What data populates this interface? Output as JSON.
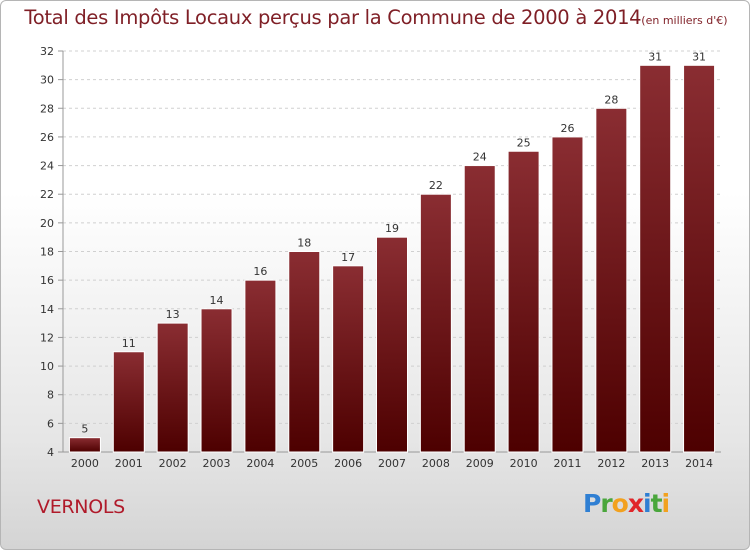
{
  "title": {
    "main": "Total des Impôts Locaux perçus par la Commune de 2000 à 2014",
    "unit": "(en milliers d'€)"
  },
  "commune": "VERNOLS",
  "logo": {
    "letters": [
      {
        "char": "P",
        "color": "#2f7fd3"
      },
      {
        "char": "r",
        "color": "#4aa63c"
      },
      {
        "char": "o",
        "color": "#f2a11e"
      },
      {
        "char": "x",
        "color": "#e0262a"
      },
      {
        "char": "i",
        "color": "#2f7fd3"
      },
      {
        "char": "t",
        "color": "#4aa63c"
      },
      {
        "char": "i",
        "color": "#f2a11e"
      }
    ]
  },
  "chart_data": {
    "type": "bar",
    "categories": [
      "2000",
      "2001",
      "2002",
      "2003",
      "2004",
      "2005",
      "2006",
      "2007",
      "2008",
      "2009",
      "2010",
      "2011",
      "2012",
      "2013",
      "2014"
    ],
    "values": [
      5,
      11,
      13,
      14,
      16,
      18,
      17,
      19,
      22,
      24,
      25,
      26,
      28,
      31,
      31
    ],
    "ylim": [
      4,
      32
    ],
    "yticks": [
      4,
      6,
      8,
      10,
      12,
      14,
      16,
      18,
      20,
      22,
      24,
      26,
      28,
      30,
      32
    ],
    "grid": true,
    "bar_color_top": "#8a2d32",
    "bar_color_bottom": "#4d0000"
  }
}
